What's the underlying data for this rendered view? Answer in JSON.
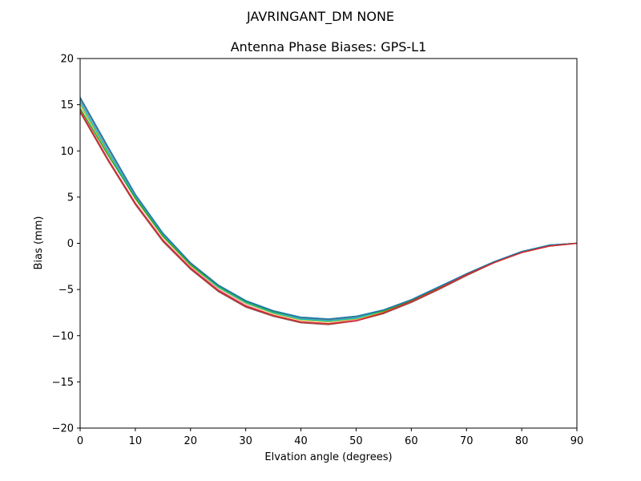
{
  "figure": {
    "suptitle": "JAVRINGANT_DM   NONE"
  },
  "chart_data": {
    "type": "line",
    "title": "Antenna Phase Biases: GPS-L1",
    "xlabel": "Elvation angle (degrees)",
    "ylabel": "Bias (mm)",
    "xlim": [
      0,
      90
    ],
    "ylim": [
      -20,
      20
    ],
    "xticks": [
      0,
      10,
      20,
      30,
      40,
      50,
      60,
      70,
      80,
      90
    ],
    "yticks": [
      -20,
      -15,
      -10,
      -5,
      0,
      5,
      10,
      15,
      20
    ],
    "xtick_labels": [
      "0",
      "10",
      "20",
      "30",
      "40",
      "50",
      "60",
      "70",
      "80",
      "90"
    ],
    "ytick_labels": [
      "−20",
      "−15",
      "−10",
      "−5",
      "0",
      "5",
      "10",
      "15",
      "20"
    ],
    "grid": false,
    "legend": false,
    "x": [
      0,
      5,
      10,
      15,
      20,
      25,
      30,
      35,
      40,
      45,
      50,
      55,
      60,
      65,
      70,
      75,
      80,
      85,
      90
    ],
    "series": [
      {
        "color": "#8c564b",
        "values": [
          14.2,
          9.0,
          4.2,
          0.2,
          -2.8,
          -5.2,
          -6.9,
          -7.9,
          -8.6,
          -8.8,
          -8.4,
          -7.6,
          -6.4,
          -5.0,
          -3.5,
          -2.1,
          -1.0,
          -0.3,
          0.0
        ]
      },
      {
        "color": "#e377c2",
        "values": [
          14.4,
          9.2,
          4.4,
          0.4,
          -2.6,
          -5.0,
          -6.7,
          -7.8,
          -8.5,
          -8.7,
          -8.3,
          -7.5,
          -6.3,
          -4.9,
          -3.4,
          -2.0,
          -0.9,
          -0.2,
          0.0
        ]
      },
      {
        "color": "#7f7f7f",
        "values": [
          15.6,
          10.3,
          5.2,
          1.0,
          -2.2,
          -4.6,
          -6.3,
          -7.4,
          -8.1,
          -8.3,
          -8.0,
          -7.3,
          -6.2,
          -4.8,
          -3.3,
          -2.0,
          -0.9,
          -0.2,
          0.0
        ]
      },
      {
        "color": "#bcbd22",
        "values": [
          15.0,
          9.8,
          4.8,
          0.7,
          -2.4,
          -4.8,
          -6.5,
          -7.6,
          -8.3,
          -8.5,
          -8.2,
          -7.4,
          -6.2,
          -4.8,
          -3.3,
          -2.0,
          -0.9,
          -0.2,
          0.0
        ]
      },
      {
        "color": "#17becf",
        "values": [
          15.3,
          10.0,
          5.0,
          0.9,
          -2.3,
          -4.7,
          -6.4,
          -7.5,
          -8.2,
          -8.4,
          -8.1,
          -7.3,
          -6.2,
          -4.8,
          -3.3,
          -2.0,
          -0.9,
          -0.2,
          0.0
        ]
      },
      {
        "color": "#2ca02c",
        "values": [
          14.6,
          9.6,
          4.9,
          0.8,
          -2.3,
          -4.6,
          -6.3,
          -7.4,
          -8.0,
          -8.2,
          -7.9,
          -7.3,
          -6.2,
          -4.8,
          -3.3,
          -2.0,
          -0.9,
          -0.2,
          0.0
        ]
      },
      {
        "color": "#1f77b4",
        "values": [
          15.8,
          10.5,
          5.3,
          1.1,
          -2.1,
          -4.5,
          -6.2,
          -7.3,
          -8.0,
          -8.2,
          -7.9,
          -7.2,
          -6.1,
          -4.7,
          -3.3,
          -2.0,
          -0.9,
          -0.2,
          0.0
        ]
      },
      {
        "color": "#d62728",
        "values": [
          14.3,
          9.1,
          4.3,
          0.3,
          -2.7,
          -5.1,
          -6.8,
          -7.8,
          -8.5,
          -8.7,
          -8.4,
          -7.5,
          -6.3,
          -4.9,
          -3.4,
          -2.1,
          -1.0,
          -0.3,
          0.0
        ]
      }
    ]
  }
}
